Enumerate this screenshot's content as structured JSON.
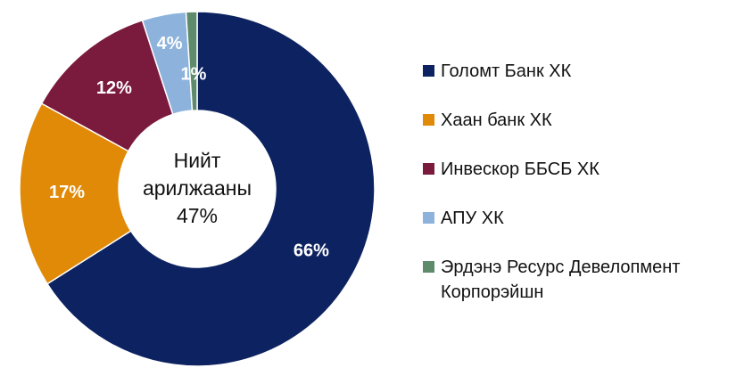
{
  "chart_data": {
    "type": "donut",
    "categories": [
      "Голомт Банк ХК",
      "Хаан банк ХК",
      "Инвескор ББСБ ХК",
      "АПУ ХК",
      "Эрдэнэ Ресурс Девелопмент Корпорэйшн"
    ],
    "values": [
      66,
      17,
      12,
      4,
      1
    ],
    "value_labels": [
      "66%",
      "17%",
      "12%",
      "4%",
      "1%"
    ],
    "colors": [
      "#0d2260",
      "#e08a07",
      "#7a1a3c",
      "#8db3dc",
      "#5e8b6c"
    ],
    "center_text": [
      "Нийт",
      "арилжааны",
      "47%"
    ],
    "legend": "right"
  }
}
